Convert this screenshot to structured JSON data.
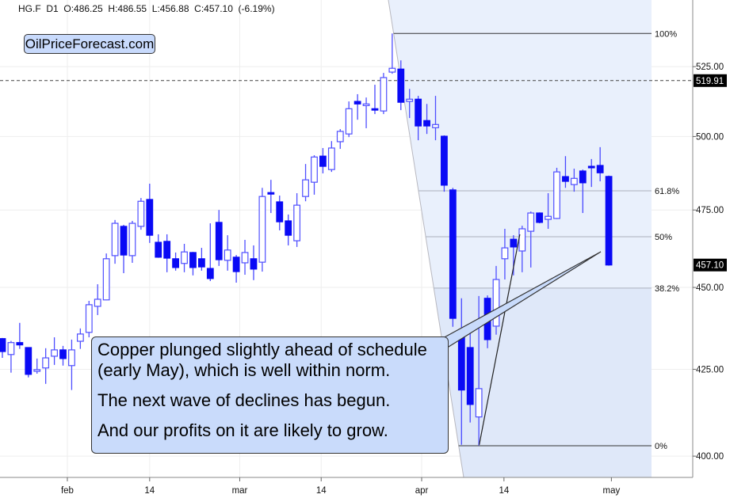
{
  "header": {
    "symbol": "HG.F",
    "timeframe": "D1",
    "open": "O:486.25",
    "high": "H:486.55",
    "low": "L:456.88",
    "close": "C:457.10",
    "change": "(-6.19%)"
  },
  "logo": "OilPriceForecast.com",
  "annotation": {
    "lines": [
      "Copper plunged slightly ahead of schedule",
      "(early May), which is well within norm.",
      "The next wave of declines has begun.",
      "And our profits on it are likely to grow."
    ]
  },
  "colors": {
    "candle_bear": "#0a0af5",
    "candle_bull_outline": "#4f4fff",
    "fib_zone": "#e9f0fc",
    "annotation_bg": "#c9dbfb"
  },
  "chart_data": {
    "type": "candlestick",
    "scale": "log",
    "ylim": [
      394.1,
      550
    ],
    "grid": true,
    "y_ticks": [
      "400.00",
      "425.00",
      "450.00",
      "475.00",
      "500.00",
      "525.00"
    ],
    "y_tick_values": [
      400,
      425,
      450,
      475,
      500,
      525
    ],
    "x_ticks": [
      "feb",
      "14",
      "mar",
      "14",
      "apr",
      "14",
      "may"
    ],
    "horizontal_line": {
      "value": 519.91,
      "label": "519.91",
      "style": "dashed"
    },
    "last_price": {
      "value": 457.1,
      "label": "457.10"
    },
    "fibonacci": [
      {
        "label": "100%",
        "value": 537.3
      },
      {
        "label": "61.8%",
        "value": 481.4
      },
      {
        "label": "50%",
        "value": 466.2
      },
      {
        "label": "38.2%",
        "value": 449.8
      },
      {
        "label": "0%",
        "value": 402.9
      }
    ],
    "trendline": {
      "from_candle": 56,
      "from_value": 403.2,
      "to_candle": 60,
      "to_value": 467.0
    },
    "ohlc_columns": [
      "open",
      "high",
      "low",
      "close"
    ],
    "candles": [
      [
        434.2,
        434.4,
        428.4,
        430.3
      ],
      [
        429.4,
        433.5,
        424.0,
        433.0
      ],
      [
        433.0,
        439.0,
        431.1,
        432.3
      ],
      [
        431.5,
        431.6,
        422.6,
        423.5
      ],
      [
        424.4,
        428.2,
        423.7,
        424.9
      ],
      [
        425.4,
        431.3,
        420.7,
        428.4
      ],
      [
        428.9,
        434.6,
        426.3,
        430.8
      ],
      [
        430.8,
        432.0,
        426.1,
        428.2
      ],
      [
        426.1,
        433.9,
        418.9,
        430.8
      ],
      [
        433.4,
        437.3,
        431.1,
        435.6
      ],
      [
        436.1,
        445.8,
        434.6,
        444.6
      ],
      [
        444.1,
        451.0,
        441.4,
        446.3
      ],
      [
        446.1,
        460.8,
        446.0,
        459.1
      ],
      [
        460.1,
        471.7,
        457.5,
        470.6
      ],
      [
        469.6,
        470.1,
        454.5,
        460.3
      ],
      [
        460.1,
        471.4,
        457.8,
        470.6
      ],
      [
        469.6,
        479.0,
        468.5,
        477.9
      ],
      [
        478.5,
        483.8,
        464.2,
        466.7
      ],
      [
        464.4,
        467.0,
        459.4,
        459.6
      ],
      [
        464.7,
        467.0,
        454.8,
        459.3
      ],
      [
        459.1,
        461.1,
        455.3,
        456.3
      ],
      [
        457.6,
        463.9,
        454.8,
        461.3
      ],
      [
        461.1,
        461.3,
        453.8,
        456.3
      ],
      [
        459.1,
        462.6,
        455.3,
        456.5
      ],
      [
        456.0,
        470.6,
        452.0,
        452.8
      ],
      [
        470.9,
        475.0,
        456.8,
        458.8
      ],
      [
        458.6,
        466.7,
        455.3,
        461.9
      ],
      [
        459.6,
        460.3,
        451.5,
        455.0
      ],
      [
        457.8,
        465.2,
        454.0,
        461.1
      ],
      [
        459.1,
        463.4,
        452.3,
        455.8
      ],
      [
        458.0,
        482.4,
        455.0,
        479.5
      ],
      [
        480.8,
        485.1,
        474.0,
        480.3
      ],
      [
        477.7,
        479.8,
        468.3,
        471.1
      ],
      [
        471.4,
        473.5,
        463.4,
        466.7
      ],
      [
        464.9,
        480.6,
        462.9,
        476.6
      ],
      [
        479.5,
        490.5,
        477.9,
        485.1
      ],
      [
        484.3,
        493.5,
        480.1,
        492.9
      ],
      [
        493.2,
        496.0,
        487.3,
        489.7
      ],
      [
        488.6,
        498.4,
        487.8,
        496.0
      ],
      [
        498.2,
        502.6,
        495.7,
        501.8
      ],
      [
        500.9,
        512.4,
        499.8,
        509.8
      ],
      [
        512.4,
        515.0,
        505.9,
        511.5
      ],
      [
        510.9,
        513.8,
        502.9,
        511.5
      ],
      [
        509.8,
        518.4,
        507.9,
        509.3
      ],
      [
        509.0,
        522.7,
        507.9,
        521.0
      ],
      [
        523.0,
        537.3,
        522.4,
        524.4
      ],
      [
        524.1,
        527.3,
        509.3,
        512.1
      ],
      [
        512.4,
        516.9,
        506.5,
        513.2
      ],
      [
        513.2,
        514.4,
        498.7,
        503.7
      ],
      [
        505.6,
        511.5,
        500.9,
        503.7
      ],
      [
        503.1,
        514.4,
        498.7,
        504.2
      ],
      [
        500.1,
        500.4,
        481.1,
        483.3
      ],
      [
        481.7,
        482.4,
        437.8,
        440.4
      ],
      [
        435.1,
        446.6,
        403.2,
        418.9
      ],
      [
        431.5,
        436.8,
        409.5,
        414.7
      ],
      [
        411.1,
        447.3,
        403.0,
        419.3
      ],
      [
        446.6,
        447.5,
        431.3,
        433.9
      ],
      [
        438.0,
        456.8,
        435.4,
        452.5
      ],
      [
        459.1,
        468.8,
        452.5,
        462.6
      ],
      [
        465.4,
        466.7,
        453.8,
        462.9
      ],
      [
        461.6,
        469.8,
        454.8,
        468.8
      ],
      [
        468.0,
        474.5,
        456.3,
        474.0
      ],
      [
        474.0,
        474.2,
        470.6,
        470.9
      ],
      [
        471.9,
        480.6,
        468.8,
        472.9
      ],
      [
        472.2,
        489.2,
        472.0,
        487.8
      ],
      [
        486.2,
        493.2,
        482.4,
        484.6
      ],
      [
        483.5,
        488.9,
        481.1,
        485.6
      ],
      [
        488.1,
        488.6,
        474.0,
        484.1
      ],
      [
        489.7,
        492.2,
        482.7,
        489.2
      ],
      [
        490.0,
        496.3,
        484.6,
        487.5
      ],
      [
        486.25,
        486.55,
        456.88,
        457.1
      ]
    ]
  }
}
